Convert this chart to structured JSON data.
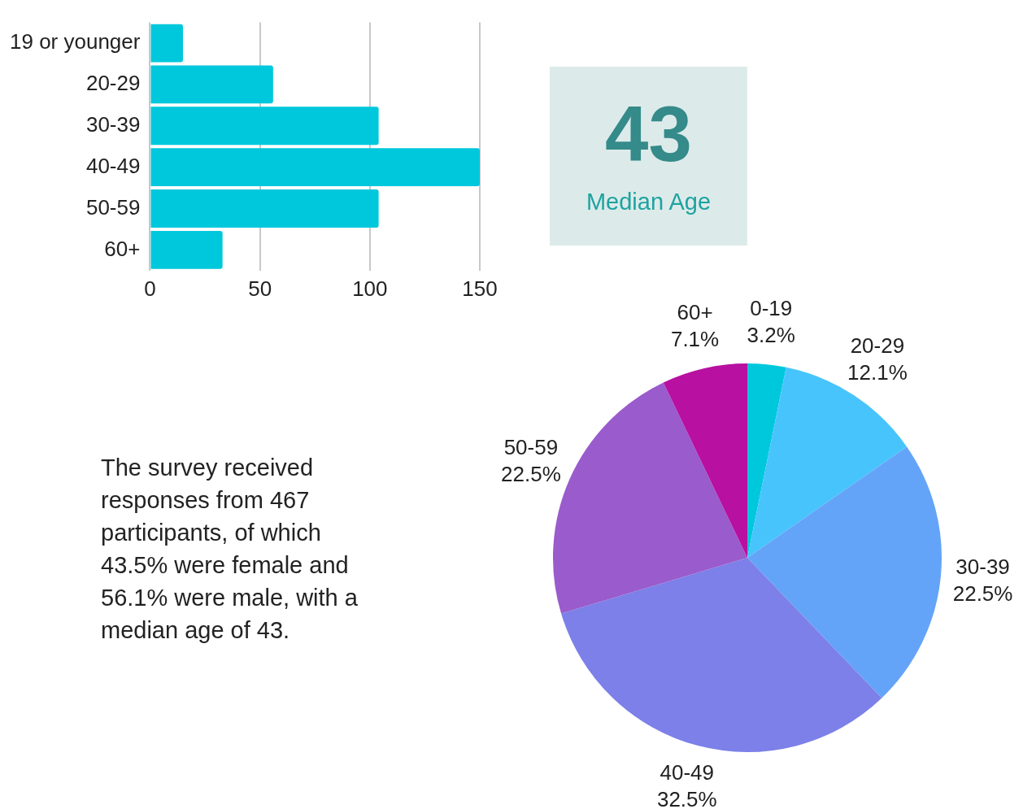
{
  "chart_data": [
    {
      "type": "bar",
      "orientation": "horizontal",
      "categories": [
        "19 or younger",
        "20-29",
        "30-39",
        "40-49",
        "50-59",
        "60+"
      ],
      "values": [
        15,
        56,
        104,
        150,
        104,
        33
      ],
      "color": "#00c8dc",
      "xlim": [
        0,
        150
      ],
      "xticks": [
        0,
        50,
        100,
        150
      ],
      "grid": "x"
    },
    {
      "type": "other",
      "title": "43",
      "subtitle": "Median Age"
    },
    {
      "type": "other",
      "annotations": [
        "The survey received responses from 467 participants, of which 43.5% were female and 56.1% were male, with a median age of 43."
      ]
    },
    {
      "type": "pie",
      "categories": [
        "0-19",
        "20-29",
        "30-39",
        "40-49",
        "50-59",
        "60+"
      ],
      "values": [
        3.2,
        12.1,
        22.5,
        32.5,
        22.5,
        7.1
      ],
      "colors": [
        "#00c8dc",
        "#48c4fc",
        "#64a4f8",
        "#7c80e8",
        "#9a5bcc",
        "#b810a0"
      ],
      "value_labels": [
        "3.2%",
        "12.1%",
        "22.5%",
        "32.5%",
        "22.5%",
        "7.1%"
      ]
    }
  ]
}
